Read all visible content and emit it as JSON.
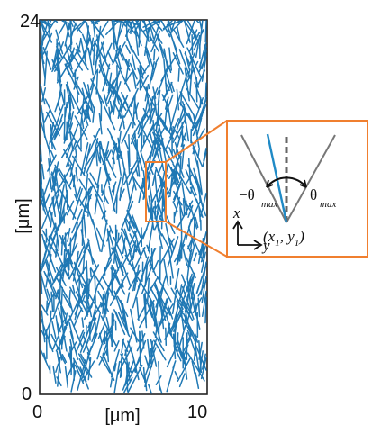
{
  "plot": {
    "y_max_label": "24",
    "y_min_label": "0",
    "x_min_label": "0",
    "x_max_label": "10",
    "y_axis_label": "[μm]",
    "x_axis_label": "[μm]",
    "y_range": [
      0,
      24
    ],
    "x_range": [
      0,
      10
    ],
    "fiber_color": "#1f78b4",
    "frame_color": "#222222"
  },
  "zoom_box": {
    "color": "#f07f2f"
  },
  "inset": {
    "axis_x_label": "x",
    "axis_y_label": "y",
    "left_angle_label": "−θ",
    "left_angle_sub": "max",
    "right_angle_label": "θ",
    "right_angle_sub": "max",
    "origin_label_open": "(x",
    "origin_label_sub1": "1",
    "origin_label_mid": ", y",
    "origin_label_sub2": "1",
    "origin_label_close": ")",
    "cone_color": "#777777",
    "dash_color": "#666666",
    "sample_fiber_color": "#1f8ac6"
  }
}
